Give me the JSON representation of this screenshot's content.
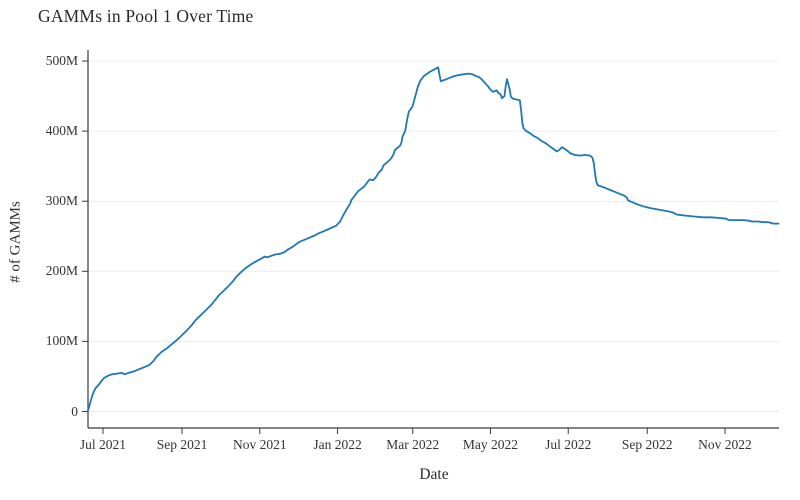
{
  "chart_data": {
    "type": "line",
    "title": "GAMMs in Pool 1 Over Time",
    "xlabel": "Date",
    "ylabel": "# of GAMMs",
    "legend": null,
    "grid": "horizontal",
    "background_color": "#ffffff",
    "line_color": "#1f77b4",
    "grid_color": "#ececec",
    "axis_color": "#3b3b3b",
    "ylim_millions": [
      -23,
      506
    ],
    "xlim": [
      "2021-06-19",
      "2022-12-18"
    ],
    "y_ticks": [
      {
        "label": "0",
        "value": 0
      },
      {
        "label": "100M",
        "value": 100
      },
      {
        "label": "200M",
        "value": 200
      },
      {
        "label": "300M",
        "value": 300
      },
      {
        "label": "400M",
        "value": 400
      },
      {
        "label": "500M",
        "value": 500
      }
    ],
    "x_ticks": [
      {
        "label": "Jul 2021",
        "date": "2021-07-01"
      },
      {
        "label": "Sep 2021",
        "date": "2021-09-01"
      },
      {
        "label": "Nov 2021",
        "date": "2021-11-01"
      },
      {
        "label": "Jan 2022",
        "date": "2022-01-01"
      },
      {
        "label": "Mar 2022",
        "date": "2022-03-01"
      },
      {
        "label": "May 2022",
        "date": "2022-05-01"
      },
      {
        "label": "Jul 2022",
        "date": "2022-07-01"
      },
      {
        "label": "Sep 2022",
        "date": "2022-09-01"
      },
      {
        "label": "Nov 2022",
        "date": "2022-11-01"
      }
    ],
    "series": [
      {
        "name": "GAMMs in Pool 1",
        "x": [
          "2021-06-19",
          "2021-06-20",
          "2021-06-21",
          "2021-06-23",
          "2021-06-25",
          "2021-06-28",
          "2021-06-30",
          "2021-07-02",
          "2021-07-05",
          "2021-07-08",
          "2021-07-12",
          "2021-07-16",
          "2021-07-18",
          "2021-07-21",
          "2021-07-25",
          "2021-07-29",
          "2021-08-02",
          "2021-08-06",
          "2021-08-08",
          "2021-08-10",
          "2021-08-12",
          "2021-08-16",
          "2021-08-20",
          "2021-08-24",
          "2021-08-28",
          "2021-09-01",
          "2021-09-05",
          "2021-09-09",
          "2021-09-12",
          "2021-09-16",
          "2021-09-20",
          "2021-09-24",
          "2021-09-27",
          "2021-09-30",
          "2021-10-03",
          "2021-10-07",
          "2021-10-11",
          "2021-10-14",
          "2021-10-18",
          "2021-10-22",
          "2021-10-26",
          "2021-10-30",
          "2021-11-02",
          "2021-11-05",
          "2021-11-07",
          "2021-11-10",
          "2021-11-13",
          "2021-11-17",
          "2021-11-20",
          "2021-11-23",
          "2021-11-26",
          "2021-11-29",
          "2021-12-02",
          "2021-12-06",
          "2021-12-10",
          "2021-12-14",
          "2021-12-17",
          "2021-12-21",
          "2021-12-26",
          "2021-12-31",
          "2022-01-03",
          "2022-01-05",
          "2022-01-08",
          "2022-01-11",
          "2022-01-12",
          "2022-01-15",
          "2022-01-17",
          "2022-01-19",
          "2022-01-22",
          "2022-01-24",
          "2022-01-26",
          "2022-01-29",
          "2022-01-31",
          "2022-02-02",
          "2022-02-05",
          "2022-02-06",
          "2022-02-08",
          "2022-02-10",
          "2022-02-12",
          "2022-02-14",
          "2022-02-15",
          "2022-02-17",
          "2022-02-19",
          "2022-02-20",
          "2022-02-21",
          "2022-02-23",
          "2022-02-25",
          "2022-02-26",
          "2022-02-28",
          "2022-03-01",
          "2022-03-03",
          "2022-03-05",
          "2022-03-07",
          "2022-03-10",
          "2022-03-14",
          "2022-03-17",
          "2022-03-19",
          "2022-03-21",
          "2022-03-22",
          "2022-03-23",
          "2022-03-26",
          "2022-03-30",
          "2022-04-02",
          "2022-04-06",
          "2022-04-10",
          "2022-04-14",
          "2022-04-17",
          "2022-04-19",
          "2022-04-22",
          "2022-04-24",
          "2022-04-26",
          "2022-04-29",
          "2022-05-01",
          "2022-05-03",
          "2022-05-06",
          "2022-05-07",
          "2022-05-09",
          "2022-05-10",
          "2022-05-12",
          "2022-05-13",
          "2022-05-14",
          "2022-05-16",
          "2022-05-17",
          "2022-05-19",
          "2022-05-22",
          "2022-05-24",
          "2022-05-25",
          "2022-05-26",
          "2022-05-27",
          "2022-05-29",
          "2022-06-01",
          "2022-06-04",
          "2022-06-07",
          "2022-06-10",
          "2022-06-13",
          "2022-06-16",
          "2022-06-19",
          "2022-06-22",
          "2022-06-24",
          "2022-06-26",
          "2022-06-28",
          "2022-07-01",
          "2022-07-03",
          "2022-07-06",
          "2022-07-10",
          "2022-07-14",
          "2022-07-18",
          "2022-07-20",
          "2022-07-21",
          "2022-07-22",
          "2022-07-23",
          "2022-07-24",
          "2022-07-27",
          "2022-07-30",
          "2022-08-03",
          "2022-08-07",
          "2022-08-11",
          "2022-08-14",
          "2022-08-16",
          "2022-08-17",
          "2022-08-21",
          "2022-08-25",
          "2022-08-30",
          "2022-09-04",
          "2022-09-10",
          "2022-09-16",
          "2022-09-21",
          "2022-09-24",
          "2022-09-28",
          "2022-10-03",
          "2022-10-09",
          "2022-10-15",
          "2022-10-21",
          "2022-10-28",
          "2022-11-02",
          "2022-11-04",
          "2022-11-10",
          "2022-11-16",
          "2022-11-20",
          "2022-11-22",
          "2022-11-27",
          "2022-12-01",
          "2022-12-05",
          "2022-12-07",
          "2022-12-09",
          "2022-12-13"
        ],
        "y_millions": [
          0,
          6,
          13,
          25,
          33,
          39,
          44,
          48,
          51,
          53,
          54,
          55,
          53,
          55,
          57,
          60,
          63,
          66,
          69,
          73,
          78,
          85,
          90,
          96,
          102,
          109,
          116,
          124,
          131,
          138,
          145,
          152,
          159,
          166,
          171,
          178,
          186,
          193,
          200,
          206,
          211,
          215,
          218,
          221,
          220,
          222,
          224,
          225,
          227,
          231,
          234,
          238,
          242,
          245,
          248,
          251,
          254,
          257,
          261,
          265,
          271,
          278,
          288,
          297,
          302,
          309,
          314,
          317,
          321,
          326,
          331,
          330,
          334,
          340,
          346,
          351,
          354,
          357,
          361,
          367,
          373,
          376,
          379,
          383,
          392,
          400,
          420,
          428,
          433,
          436,
          450,
          463,
          472,
          479,
          484,
          487,
          489,
          491,
          480,
          471,
          473,
          476,
          478,
          480,
          481,
          482,
          481,
          479,
          477,
          474,
          470,
          464,
          459,
          456,
          458,
          455,
          452,
          447,
          450,
          465,
          474,
          460,
          449,
          446,
          445,
          444,
          430,
          412,
          404,
          400,
          397,
          393,
          390,
          386,
          383,
          379,
          375,
          371,
          373,
          377,
          375,
          371,
          368,
          366,
          365,
          366,
          365,
          362,
          355,
          340,
          328,
          323,
          321,
          319,
          316,
          313,
          310,
          308,
          305,
          301,
          298,
          295,
          292,
          290,
          288,
          286,
          284,
          281,
          280,
          279,
          278,
          277,
          277,
          276,
          275,
          273,
          273,
          273,
          272,
          271,
          271,
          270,
          270,
          269,
          268,
          268
        ]
      }
    ]
  }
}
